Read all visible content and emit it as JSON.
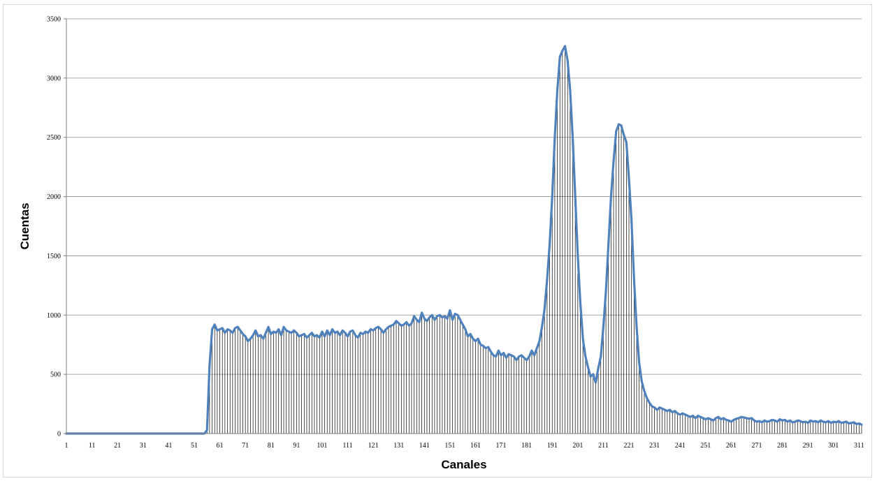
{
  "chart_data": {
    "type": "line",
    "title": "",
    "xlabel": "Canales",
    "ylabel": "Cuentas",
    "xlim": [
      1,
      312
    ],
    "ylim": [
      0,
      3500
    ],
    "y_ticks": [
      0,
      500,
      1000,
      1500,
      2000,
      2500,
      3000,
      3500
    ],
    "x_ticks": [
      1,
      11,
      21,
      31,
      41,
      51,
      61,
      71,
      81,
      91,
      101,
      111,
      121,
      131,
      141,
      151,
      161,
      171,
      181,
      191,
      201,
      211,
      221,
      231,
      241,
      251,
      261,
      271,
      281,
      291,
      301,
      311
    ],
    "grid": "horizontal",
    "legend": "none",
    "drop_lines": true,
    "series_color": "#4f81bd",
    "drop_line_color": "#000000",
    "series": [
      {
        "points": [
          [
            1,
            0
          ],
          [
            55,
            0
          ],
          [
            56,
            30
          ],
          [
            57,
            580
          ],
          [
            58,
            880
          ],
          [
            59,
            920
          ],
          [
            60,
            870
          ],
          [
            61,
            880
          ],
          [
            62,
            890
          ],
          [
            63,
            850
          ],
          [
            64,
            880
          ],
          [
            65,
            870
          ],
          [
            66,
            850
          ],
          [
            67,
            890
          ],
          [
            68,
            900
          ],
          [
            69,
            870
          ],
          [
            70,
            840
          ],
          [
            71,
            820
          ],
          [
            72,
            780
          ],
          [
            73,
            800
          ],
          [
            74,
            830
          ],
          [
            75,
            870
          ],
          [
            76,
            820
          ],
          [
            77,
            830
          ],
          [
            78,
            800
          ],
          [
            79,
            850
          ],
          [
            80,
            900
          ],
          [
            81,
            840
          ],
          [
            82,
            860
          ],
          [
            83,
            850
          ],
          [
            84,
            880
          ],
          [
            85,
            830
          ],
          [
            86,
            900
          ],
          [
            87,
            870
          ],
          [
            88,
            860
          ],
          [
            89,
            850
          ],
          [
            90,
            870
          ],
          [
            91,
            850
          ],
          [
            92,
            820
          ],
          [
            93,
            830
          ],
          [
            94,
            840
          ],
          [
            95,
            810
          ],
          [
            96,
            830
          ],
          [
            97,
            850
          ],
          [
            98,
            820
          ],
          [
            99,
            830
          ],
          [
            100,
            810
          ],
          [
            101,
            860
          ],
          [
            102,
            820
          ],
          [
            103,
            870
          ],
          [
            104,
            830
          ],
          [
            105,
            880
          ],
          [
            106,
            850
          ],
          [
            107,
            860
          ],
          [
            108,
            830
          ],
          [
            109,
            870
          ],
          [
            110,
            850
          ],
          [
            111,
            820
          ],
          [
            112,
            860
          ],
          [
            113,
            870
          ],
          [
            114,
            830
          ],
          [
            115,
            810
          ],
          [
            116,
            850
          ],
          [
            117,
            840
          ],
          [
            118,
            860
          ],
          [
            119,
            850
          ],
          [
            120,
            880
          ],
          [
            121,
            870
          ],
          [
            122,
            890
          ],
          [
            123,
            900
          ],
          [
            124,
            880
          ],
          [
            125,
            850
          ],
          [
            126,
            880
          ],
          [
            127,
            900
          ],
          [
            128,
            910
          ],
          [
            129,
            920
          ],
          [
            130,
            950
          ],
          [
            131,
            930
          ],
          [
            132,
            910
          ],
          [
            133,
            920
          ],
          [
            134,
            940
          ],
          [
            135,
            910
          ],
          [
            136,
            930
          ],
          [
            137,
            990
          ],
          [
            138,
            960
          ],
          [
            139,
            940
          ],
          [
            140,
            1020
          ],
          [
            141,
            970
          ],
          [
            142,
            950
          ],
          [
            143,
            980
          ],
          [
            144,
            1000
          ],
          [
            145,
            960
          ],
          [
            146,
            990
          ],
          [
            147,
            1000
          ],
          [
            148,
            980
          ],
          [
            149,
            990
          ],
          [
            150,
            970
          ],
          [
            151,
            1040
          ],
          [
            152,
            960
          ],
          [
            153,
            1010
          ],
          [
            154,
            1000
          ],
          [
            155,
            960
          ],
          [
            156,
            920
          ],
          [
            157,
            880
          ],
          [
            158,
            820
          ],
          [
            159,
            840
          ],
          [
            160,
            800
          ],
          [
            161,
            780
          ],
          [
            162,
            800
          ],
          [
            163,
            750
          ],
          [
            164,
            740
          ],
          [
            165,
            720
          ],
          [
            166,
            730
          ],
          [
            167,
            690
          ],
          [
            168,
            660
          ],
          [
            169,
            650
          ],
          [
            170,
            700
          ],
          [
            171,
            660
          ],
          [
            172,
            680
          ],
          [
            173,
            640
          ],
          [
            174,
            670
          ],
          [
            175,
            660
          ],
          [
            176,
            650
          ],
          [
            177,
            620
          ],
          [
            178,
            650
          ],
          [
            179,
            660
          ],
          [
            180,
            640
          ],
          [
            181,
            620
          ],
          [
            182,
            650
          ],
          [
            183,
            700
          ],
          [
            184,
            660
          ],
          [
            185,
            720
          ],
          [
            186,
            780
          ],
          [
            187,
            900
          ],
          [
            188,
            1050
          ],
          [
            189,
            1300
          ],
          [
            190,
            1600
          ],
          [
            191,
            2000
          ],
          [
            192,
            2500
          ],
          [
            193,
            2900
          ],
          [
            194,
            3180
          ],
          [
            195,
            3230
          ],
          [
            196,
            3270
          ],
          [
            197,
            3150
          ],
          [
            198,
            2900
          ],
          [
            199,
            2500
          ],
          [
            200,
            2000
          ],
          [
            201,
            1500
          ],
          [
            202,
            1100
          ],
          [
            203,
            800
          ],
          [
            204,
            650
          ],
          [
            205,
            560
          ],
          [
            206,
            480
          ],
          [
            207,
            500
          ],
          [
            208,
            430
          ],
          [
            209,
            550
          ],
          [
            210,
            650
          ],
          [
            211,
            900
          ],
          [
            212,
            1200
          ],
          [
            213,
            1600
          ],
          [
            214,
            2000
          ],
          [
            215,
            2300
          ],
          [
            216,
            2550
          ],
          [
            217,
            2610
          ],
          [
            218,
            2600
          ],
          [
            219,
            2520
          ],
          [
            220,
            2460
          ],
          [
            221,
            2150
          ],
          [
            222,
            1800
          ],
          [
            223,
            1300
          ],
          [
            224,
            900
          ],
          [
            225,
            600
          ],
          [
            226,
            440
          ],
          [
            227,
            360
          ],
          [
            228,
            300
          ],
          [
            229,
            260
          ],
          [
            230,
            230
          ],
          [
            231,
            220
          ],
          [
            232,
            200
          ],
          [
            233,
            220
          ],
          [
            234,
            210
          ],
          [
            235,
            200
          ],
          [
            236,
            190
          ],
          [
            237,
            200
          ],
          [
            238,
            180
          ],
          [
            239,
            190
          ],
          [
            240,
            170
          ],
          [
            241,
            160
          ],
          [
            242,
            170
          ],
          [
            243,
            160
          ],
          [
            244,
            150
          ],
          [
            245,
            140
          ],
          [
            246,
            150
          ],
          [
            247,
            130
          ],
          [
            248,
            150
          ],
          [
            249,
            140
          ],
          [
            250,
            130
          ],
          [
            251,
            120
          ],
          [
            252,
            130
          ],
          [
            253,
            120
          ],
          [
            254,
            110
          ],
          [
            255,
            130
          ],
          [
            256,
            140
          ],
          [
            257,
            120
          ],
          [
            258,
            130
          ],
          [
            259,
            115
          ],
          [
            260,
            110
          ],
          [
            261,
            100
          ],
          [
            262,
            115
          ],
          [
            263,
            125
          ],
          [
            264,
            130
          ],
          [
            265,
            140
          ],
          [
            266,
            135
          ],
          [
            267,
            130
          ],
          [
            268,
            125
          ],
          [
            269,
            130
          ],
          [
            270,
            110
          ],
          [
            271,
            100
          ],
          [
            272,
            105
          ],
          [
            273,
            95
          ],
          [
            274,
            110
          ],
          [
            275,
            100
          ],
          [
            276,
            105
          ],
          [
            277,
            115
          ],
          [
            278,
            110
          ],
          [
            279,
            100
          ],
          [
            280,
            120
          ],
          [
            281,
            110
          ],
          [
            282,
            115
          ],
          [
            283,
            100
          ],
          [
            284,
            110
          ],
          [
            285,
            95
          ],
          [
            286,
            100
          ],
          [
            287,
            110
          ],
          [
            288,
            105
          ],
          [
            289,
            95
          ],
          [
            290,
            100
          ],
          [
            291,
            90
          ],
          [
            292,
            110
          ],
          [
            293,
            100
          ],
          [
            294,
            105
          ],
          [
            295,
            95
          ],
          [
            296,
            110
          ],
          [
            297,
            100
          ],
          [
            298,
            95
          ],
          [
            299,
            105
          ],
          [
            300,
            90
          ],
          [
            301,
            100
          ],
          [
            302,
            95
          ],
          [
            303,
            105
          ],
          [
            304,
            90
          ],
          [
            305,
            95
          ],
          [
            306,
            100
          ],
          [
            307,
            85
          ],
          [
            308,
            90
          ],
          [
            309,
            95
          ],
          [
            310,
            80
          ],
          [
            311,
            85
          ],
          [
            312,
            75
          ]
        ]
      }
    ]
  }
}
